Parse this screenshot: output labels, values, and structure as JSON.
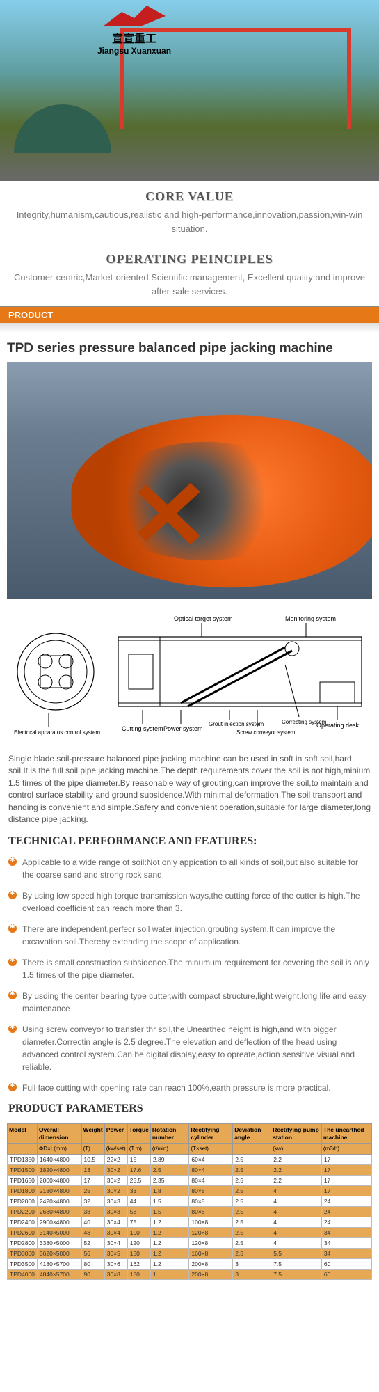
{
  "logo": {
    "cn": "宣宣重工",
    "en": "Jiangsu Xuanxuan"
  },
  "core_value": {
    "title": "CORE VALUE",
    "text": "Integrity,humanism,cautious,realistic and high-performance,innovation,passion,win-win situation."
  },
  "operating": {
    "title": "OPERATING PEINCIPLES",
    "text": "Customer-centric,Market-oriented,Scientific management, Excellent quality and improve after-sale services."
  },
  "product_label": "PRODUCT",
  "main_title": "TPD series pressure balanced pipe jacking machine",
  "diagram_labels": {
    "l1": "Electrical apparatus control system",
    "l2": "Cutting system",
    "l3": "Power system",
    "l4": "Optical target system",
    "l5": "Grout injection system",
    "l6": "Screw conveyor system",
    "l7": "Correcting system",
    "l8": "Monitoring system",
    "l9": "Operating desk"
  },
  "description": "Single blade soil-pressure balanced pipe jacking machine can be used in soft in soft soil,hard soil.It is the full soil pipe jacking machine.The depth requirements cover the soil is not high,minium 1.5 times of the pipe diameter.By reasonable way of grouting,can improve the soil,to maintain and control surface stability and ground subsidence.With minimal deformation.The soil transport and handing is convenient and simple.Safery and convenient operation,suitable for large diameter,long distance pipe jacking.",
  "tech_title": "TECHNICAL PERFORMANCE AND FEATURES:",
  "features": [
    "Applicable to a wide range of soil:Not only appication to all kinds of soil,but also suitable for the coarse sand and strong rock sand.",
    "By using low speed high torque transmission ways,the cutting force of the cutter is high.The overload coefficient can reach more than 3.",
    "There are independent,perfecr soil water injection,grouting system.It can improve the excavation soil.Thereby extending the scope of application.",
    "There is small construction subsidence.The minumum requirement for covering the soil is only 1.5 times of the pipe diameter.",
    "By usding the center bearing type cutter,with compact structure,light weight,long life and easy maintenance",
    "Using screw conveyor to transfer thr soil,the Unearthed height is high,and with bigger diameter.Correctin angle is 2.5 degree.The elevation and deflection of the head using advanced control system.Can be digital display,easy to opreate,action sensitive,visual and reliable.",
    "Full face cutting with opening rate can reach 100%,earth pressure is more practical."
  ],
  "params_title": "PRODUCT PARAMETERS",
  "table": {
    "headers": [
      "Model",
      "Overall dimension",
      "Weight",
      "Power",
      "Torque",
      "Rotation number",
      "Rectifying cylinder",
      "Deviation angle",
      "Rectifying pump station",
      "The unearthed machine"
    ],
    "subheaders": [
      "",
      "ΦD×L(mm)",
      "(T)",
      "(kw/set)",
      "(T.m)",
      "(r/min)",
      "(T×set)",
      "",
      "(kw)",
      "(m3/h)"
    ],
    "rows": [
      {
        "hl": false,
        "c": [
          "TPD1350",
          "1640×4800",
          "10.5",
          "22×2",
          "15",
          "2.89",
          "60×4",
          "2.5",
          "2.2",
          "17"
        ]
      },
      {
        "hl": true,
        "c": [
          "TPD1500",
          "1820×4800",
          "13",
          "30×2",
          "17.6",
          "2.5",
          "80×4",
          "2.5",
          "2.2",
          "17"
        ]
      },
      {
        "hl": false,
        "c": [
          "TPD1650",
          "2000×4800",
          "17",
          "30×2",
          "25.5",
          "2.35",
          "80×4",
          "2.5",
          "2.2",
          "17"
        ]
      },
      {
        "hl": true,
        "c": [
          "TPD1800",
          "2180×4800",
          "25",
          "30×2",
          "33",
          "1.8",
          "80×8",
          "2.5",
          "4",
          "17"
        ]
      },
      {
        "hl": false,
        "c": [
          "TPD2000",
          "2420×4800",
          "32",
          "30×3",
          "44",
          "1.5",
          "80×8",
          "2.5",
          "4",
          "24"
        ]
      },
      {
        "hl": true,
        "c": [
          "TPD2200",
          "2680×4800",
          "38",
          "30×3",
          "58",
          "1.5",
          "80×8",
          "2.5",
          "4",
          "24"
        ]
      },
      {
        "hl": false,
        "c": [
          "TPD2400",
          "2900×4800",
          "40",
          "30×4",
          "75",
          "1.2",
          "100×8",
          "2.5",
          "4",
          "24"
        ]
      },
      {
        "hl": true,
        "c": [
          "TPD2600",
          "3140×5000",
          "48",
          "30×4",
          "100",
          "1.2",
          "120×8",
          "2.5",
          "4",
          "34"
        ]
      },
      {
        "hl": false,
        "c": [
          "TPD2800",
          "3380×5000",
          "52",
          "30×4",
          "120",
          "1.2",
          "120×8",
          "2.5",
          "4",
          "34"
        ]
      },
      {
        "hl": true,
        "c": [
          "TPD3000",
          "3620×5000",
          "56",
          "30×5",
          "150",
          "1.2",
          "160×8",
          "2.5",
          "5.5",
          "34"
        ]
      },
      {
        "hl": false,
        "c": [
          "TPD3500",
          "4180×5700",
          "80",
          "30×6",
          "162",
          "1.2",
          "200×8",
          "3",
          "7.5",
          "60"
        ]
      },
      {
        "hl": true,
        "c": [
          "TPD4000",
          "4840×5700",
          "90",
          "30×8",
          "180",
          "1",
          "200×8",
          "3",
          "7.5",
          "60"
        ]
      }
    ]
  }
}
